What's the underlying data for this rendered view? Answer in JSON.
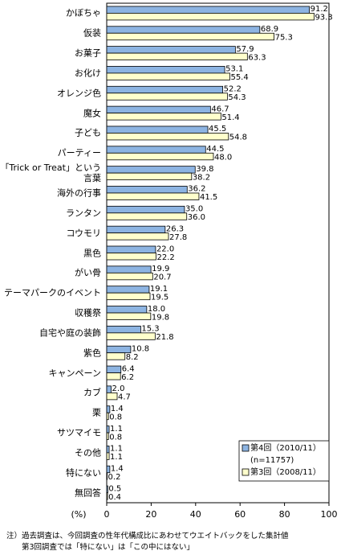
{
  "chart_data": {
    "type": "hbar",
    "categories": [
      "かぼちゃ",
      "仮装",
      "お菓子",
      "お化け",
      "オレンジ色",
      "魔女",
      "子ども",
      "パーティー",
      "「Trick or Treat」という\n言葉",
      "海外の行事",
      "ランタン",
      "コウモリ",
      "黒色",
      "がい骨",
      "テーマパークのイベント",
      "収穫祭",
      "自宅や庭の装飾",
      "紫色",
      "キャンペーン",
      "カブ",
      "栗",
      "サツマイモ",
      "その他",
      "特にない",
      "無回答"
    ],
    "series": [
      {
        "name": "第4回（2010/11）",
        "sample_size": "(n=11757)",
        "color": "#8db4e2",
        "values": [
          91.2,
          68.9,
          57.9,
          53.1,
          52.2,
          46.7,
          45.5,
          44.5,
          39.8,
          36.2,
          35.0,
          26.3,
          22.0,
          19.9,
          19.1,
          18.0,
          15.3,
          10.8,
          6.4,
          2.0,
          1.4,
          1.1,
          1.1,
          1.4,
          0.5
        ],
        "value_labels": [
          "91.2",
          "68.9",
          "57.9",
          "53.1",
          "52.2",
          "46.7",
          "45.5",
          "44.5",
          "39.8",
          "36.2",
          "35.0",
          "26.3",
          "22.0",
          "19.9",
          "19.1",
          "18.0",
          "15.3",
          "10.8",
          "6.4",
          "2.0",
          "1.4",
          "1.1",
          "1.1",
          "1.4",
          "0.5"
        ]
      },
      {
        "name": "第3回（2008/11）",
        "color": "#ffffcc",
        "values": [
          93.3,
          75.3,
          63.3,
          55.4,
          54.3,
          51.4,
          54.8,
          48.0,
          38.2,
          41.5,
          36.0,
          27.8,
          22.2,
          20.7,
          19.5,
          19.8,
          21.8,
          8.2,
          6.2,
          4.7,
          0.8,
          0.8,
          1.1,
          0.2,
          0.4
        ],
        "value_labels": [
          "93.3",
          "75.3",
          "63.3",
          "55.4",
          "54.3",
          "51.4",
          "54.8",
          "48.0",
          "38.2",
          "41.5",
          "36.0",
          "27.8",
          "22.2",
          "20.7",
          "19.5",
          "19.8",
          "21.8",
          "8.2",
          "6.2",
          "4.7",
          "0.8",
          "0.8",
          "1.1",
          "0.2",
          "0.4"
        ]
      }
    ],
    "xlabel": "(%)",
    "xlim": [
      0,
      100
    ],
    "xticks": [
      0,
      20,
      40,
      60,
      80,
      100
    ],
    "grid": false,
    "legend_position": "lower right",
    "notes": [
      "注）過去調査は、今回調査の性年代構成比にあわせてウエイトバックをした集計値",
      "　　第3回調査では「特にない」は「この中にはない」"
    ]
  }
}
